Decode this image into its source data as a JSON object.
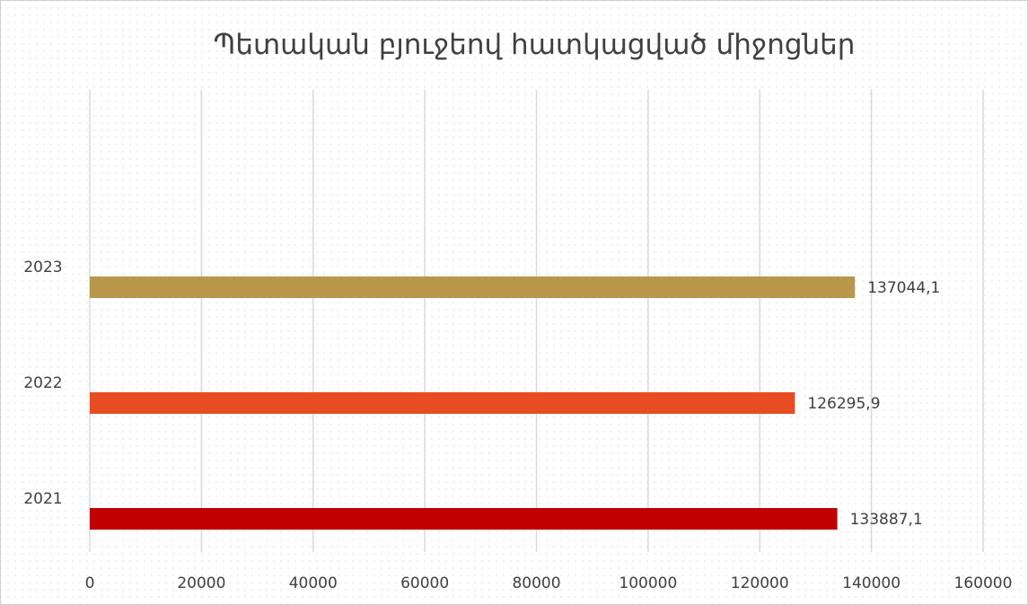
{
  "chart_data": {
    "type": "hbar",
    "title": "Պետական բյուջեով հատկացված միջոցներ",
    "categories": [
      "2021",
      "2022",
      "2023"
    ],
    "values": [
      133887.1,
      126295.9,
      137044.1
    ],
    "value_labels": [
      "133887,1",
      "126295,9",
      "137044,1"
    ],
    "colors": [
      "#c00000",
      "#e84c22",
      "#b8974a"
    ],
    "xlim": [
      0,
      160000
    ],
    "xticks": [
      0,
      20000,
      40000,
      60000,
      80000,
      100000,
      120000,
      140000,
      160000
    ],
    "grid": true
  }
}
